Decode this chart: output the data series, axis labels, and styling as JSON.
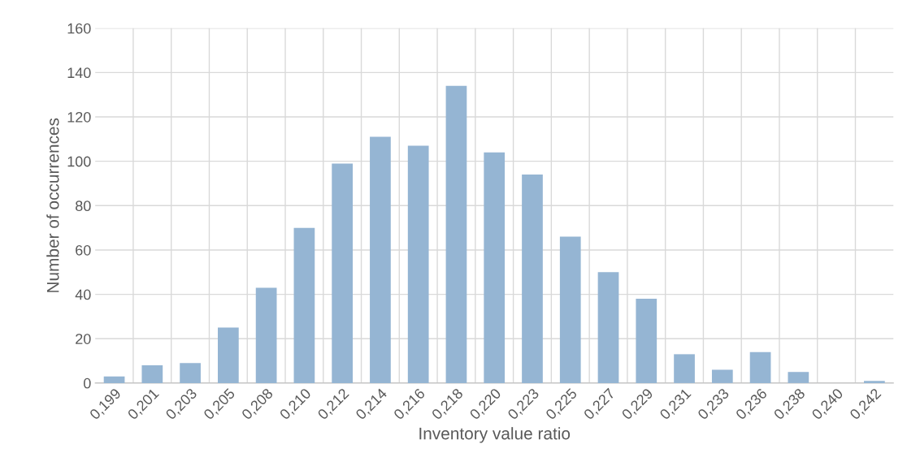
{
  "chart_data": {
    "type": "bar",
    "categories": [
      "0,199",
      "0,201",
      "0,203",
      "0,205",
      "0,208",
      "0,210",
      "0,212",
      "0,214",
      "0,216",
      "0,218",
      "0,220",
      "0,223",
      "0,225",
      "0,227",
      "0,229",
      "0,231",
      "0,233",
      "0,236",
      "0,238",
      "0,240",
      "0,242"
    ],
    "values": [
      3,
      8,
      9,
      25,
      43,
      70,
      99,
      111,
      107,
      134,
      104,
      94,
      66,
      50,
      38,
      13,
      6,
      14,
      5,
      0,
      1
    ],
    "color": "#95b5d3",
    "xlabel": "Inventory value ratio",
    "ylabel": "Number of occurrences",
    "ylim": [
      0,
      160
    ],
    "yticks": [
      0,
      20,
      40,
      60,
      80,
      100,
      120,
      140,
      160
    ],
    "grid": true
  }
}
